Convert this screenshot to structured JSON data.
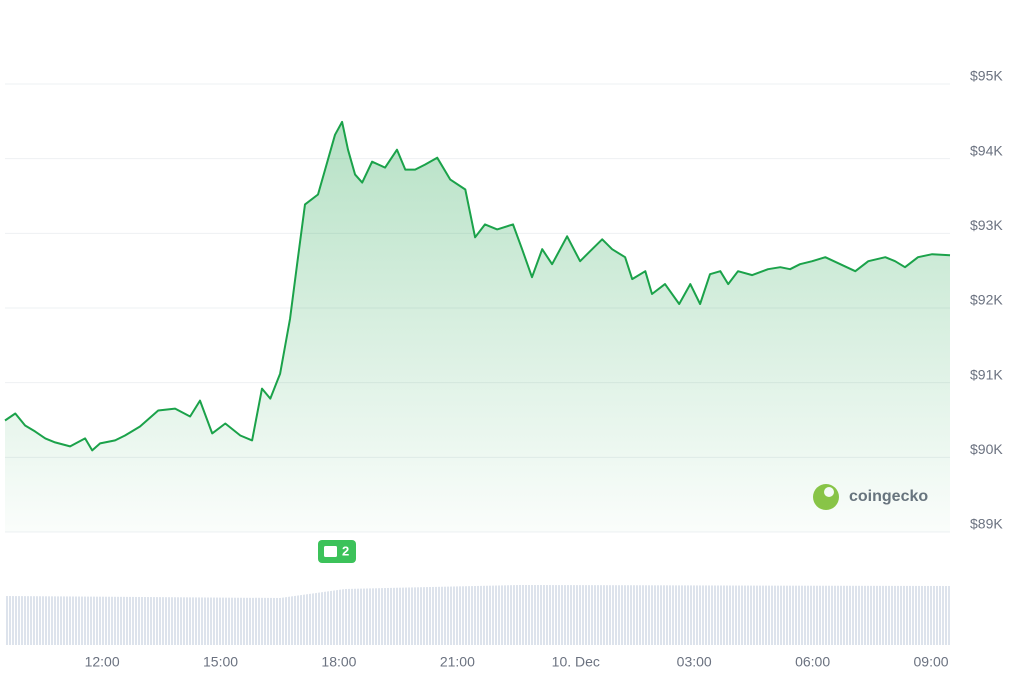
{
  "chart_data": {
    "type": "area",
    "color": "#1ba24a",
    "grid": true,
    "x": [
      9.54,
      9.8,
      10.05,
      10.3,
      10.56,
      10.81,
      11.19,
      11.57,
      11.75,
      11.95,
      12.33,
      12.58,
      12.96,
      13.42,
      13.85,
      14.23,
      14.48,
      14.79,
      15.12,
      15.5,
      15.8,
      16.05,
      16.26,
      16.51,
      16.76,
      16.94,
      17.14,
      17.47,
      17.65,
      17.9,
      18.08,
      18.23,
      18.41,
      18.59,
      18.84,
      19.17,
      19.47,
      19.68,
      19.93,
      20.18,
      20.49,
      20.82,
      21.2,
      21.45,
      21.7,
      22.01,
      22.41,
      22.64,
      22.89,
      23.15,
      23.4,
      23.78,
      24.11,
      24.36,
      24.67,
      24.92,
      25.25,
      25.43,
      25.76,
      25.93,
      26.26,
      26.62,
      26.9,
      27.15,
      27.4,
      27.66,
      27.86,
      28.11,
      28.47,
      28.87,
      29.18,
      29.43,
      29.68,
      29.99,
      30.32,
      30.7,
      31.08,
      31.41,
      31.84,
      32.09,
      32.34,
      32.67,
      33.03,
      33.48
    ],
    "values": [
      90493,
      90587,
      90427,
      90347,
      90253,
      90200,
      90147,
      90253,
      90093,
      90187,
      90227,
      90293,
      90413,
      90627,
      90653,
      90547,
      90760,
      90320,
      90453,
      90293,
      90227,
      90920,
      90787,
      91120,
      91853,
      92587,
      93387,
      93520,
      93853,
      94320,
      94493,
      94120,
      93787,
      93680,
      93960,
      93880,
      94120,
      93853,
      93853,
      93920,
      94013,
      93720,
      93587,
      92947,
      93120,
      93053,
      93120,
      92787,
      92413,
      92787,
      92587,
      92960,
      92627,
      92760,
      92920,
      92787,
      92680,
      92387,
      92493,
      92187,
      92320,
      92053,
      92320,
      92053,
      92453,
      92493,
      92320,
      92493,
      92440,
      92520,
      92547,
      92520,
      92587,
      92627,
      92680,
      92587,
      92493,
      92627,
      92680,
      92627,
      92547,
      92680,
      92720,
      92707
    ],
    "xlim": [
      9.54,
      33.48
    ],
    "xticks": [
      {
        "value": 12,
        "label": "12:00"
      },
      {
        "value": 15,
        "label": "15:00"
      },
      {
        "value": 18,
        "label": "18:00"
      },
      {
        "value": 21,
        "label": "21:00"
      },
      {
        "value": 24,
        "label": "10. Dec"
      },
      {
        "value": 27,
        "label": "03:00"
      },
      {
        "value": 30,
        "label": "06:00"
      },
      {
        "value": 33,
        "label": "09:00"
      }
    ],
    "ylim": [
      89000,
      95000
    ],
    "yticks": [
      {
        "value": 89000,
        "label": "$89K"
      },
      {
        "value": 90000,
        "label": "$90K"
      },
      {
        "value": 91000,
        "label": "$91K"
      },
      {
        "value": 92000,
        "label": "$92K"
      },
      {
        "value": 93000,
        "label": "$93K"
      },
      {
        "value": 94000,
        "label": "$94K"
      },
      {
        "value": 95000,
        "label": "$95K"
      }
    ],
    "news_badge": "2",
    "watermark": "coingecko"
  }
}
